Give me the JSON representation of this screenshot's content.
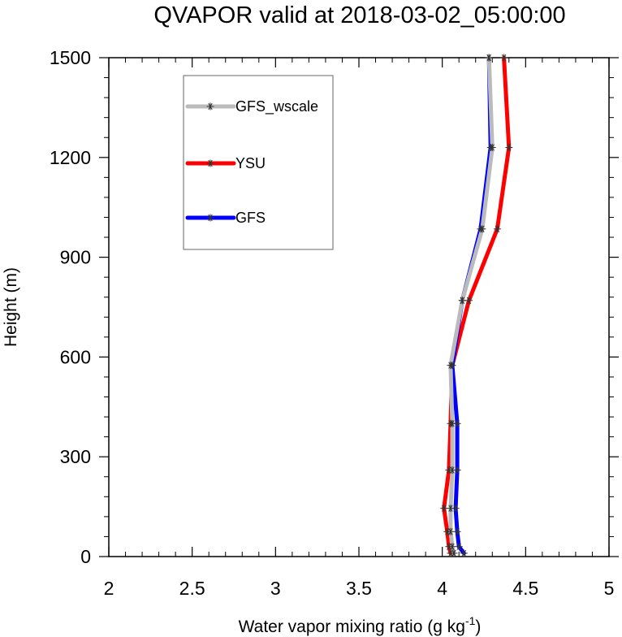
{
  "chart_data": {
    "type": "line",
    "title": "QVAPOR valid at 2018-03-02_05:00:00",
    "xlabel": "Water vapor mixing ratio (g kg",
    "xlabel_superscript": "-1",
    "xlabel_suffix": ")",
    "ylabel": "Height (m)",
    "xlim": [
      2,
      5
    ],
    "ylim": [
      0,
      1500
    ],
    "xticks": [
      "2",
      "2.5",
      "3",
      "3.5",
      "4",
      "4.5",
      "5"
    ],
    "yticks": [
      "0",
      "300",
      "600",
      "900",
      "1200",
      "1500"
    ],
    "grid": false,
    "legend_position": "top-left",
    "series": [
      {
        "name": "GFS_wscale",
        "color": "#bbbbbb",
        "points": [
          {
            "x": 4.07,
            "y": 10
          },
          {
            "x": 4.06,
            "y": 30
          },
          {
            "x": 4.05,
            "y": 75
          },
          {
            "x": 4.05,
            "y": 145
          },
          {
            "x": 4.06,
            "y": 260
          },
          {
            "x": 4.06,
            "y": 400
          },
          {
            "x": 4.05,
            "y": 575
          },
          {
            "x": 4.12,
            "y": 770
          },
          {
            "x": 4.24,
            "y": 985
          },
          {
            "x": 4.3,
            "y": 1230
          },
          {
            "x": 4.28,
            "y": 1500
          }
        ]
      },
      {
        "name": "YSU",
        "color": "#ff0000",
        "points": [
          {
            "x": 4.05,
            "y": 10
          },
          {
            "x": 4.04,
            "y": 30
          },
          {
            "x": 4.03,
            "y": 75
          },
          {
            "x": 4.01,
            "y": 145
          },
          {
            "x": 4.04,
            "y": 260
          },
          {
            "x": 4.05,
            "y": 400
          },
          {
            "x": 4.06,
            "y": 575
          },
          {
            "x": 4.16,
            "y": 770
          },
          {
            "x": 4.33,
            "y": 985
          },
          {
            "x": 4.4,
            "y": 1230
          },
          {
            "x": 4.37,
            "y": 1500
          }
        ]
      },
      {
        "name": "GFS",
        "color": "#0000ff",
        "points": [
          {
            "x": 4.13,
            "y": 10
          },
          {
            "x": 4.1,
            "y": 30
          },
          {
            "x": 4.09,
            "y": 75
          },
          {
            "x": 4.08,
            "y": 145
          },
          {
            "x": 4.09,
            "y": 260
          },
          {
            "x": 4.09,
            "y": 400
          },
          {
            "x": 4.06,
            "y": 575
          },
          {
            "x": 4.12,
            "y": 770
          },
          {
            "x": 4.23,
            "y": 985
          },
          {
            "x": 4.29,
            "y": 1230
          },
          {
            "x": 4.28,
            "y": 1500
          }
        ]
      }
    ]
  }
}
